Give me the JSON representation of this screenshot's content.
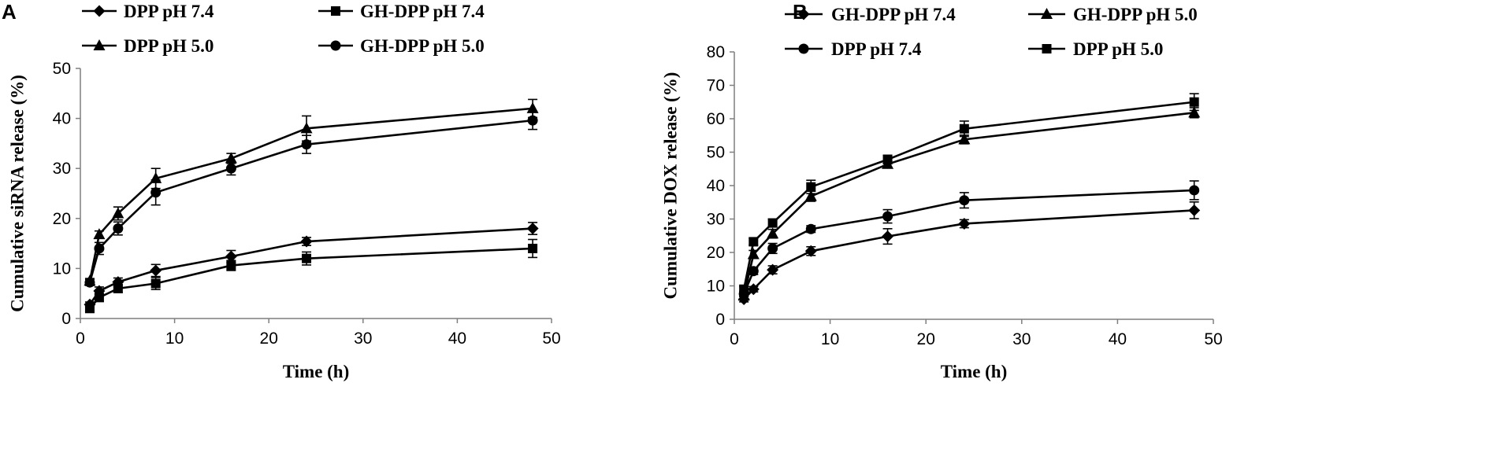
{
  "figure": {
    "panels": [
      {
        "label": "A"
      },
      {
        "label": "B"
      }
    ]
  },
  "chart_data": [
    {
      "type": "line",
      "panel": "A",
      "xlabel": "Time (h)",
      "ylabel": "Cumulative siRNA release (%)",
      "xlim": [
        0,
        50
      ],
      "ylim": [
        0,
        50
      ],
      "xticks": [
        0,
        10,
        20,
        30,
        40,
        50
      ],
      "yticks": [
        0,
        10,
        20,
        30,
        40,
        50
      ],
      "x": [
        1,
        2,
        4,
        8,
        16,
        24,
        48
      ],
      "legend_position": "top",
      "series": [
        {
          "name": "DPP pH 7.4",
          "marker": "diamond",
          "values": [
            2.8,
            5.5,
            7.3,
            9.6,
            12.4,
            15.4,
            18.0
          ],
          "errors": [
            0.5,
            0.8,
            0.8,
            1.2,
            1.2,
            0.8,
            1.2
          ]
        },
        {
          "name": "GH-DPP pH 7.4",
          "marker": "square",
          "values": [
            2.0,
            4.2,
            6.0,
            7.0,
            10.6,
            12.0,
            14.0
          ],
          "errors": [
            0.5,
            0.8,
            0.8,
            1.2,
            1.0,
            1.3,
            1.8
          ]
        },
        {
          "name": "DPP pH 5.0",
          "marker": "triangle",
          "values": [
            7.5,
            16.8,
            21.0,
            28.0,
            32.0,
            38.0,
            42.0
          ],
          "errors": [
            0.5,
            0.7,
            1.3,
            2.0,
            1.0,
            2.5,
            1.8
          ]
        },
        {
          "name": "GH-DPP pH 5.0",
          "marker": "circle",
          "values": [
            7.2,
            14.0,
            18.0,
            25.2,
            30.0,
            34.8,
            39.6
          ],
          "errors": [
            0.6,
            1.2,
            1.3,
            2.5,
            1.3,
            1.8,
            1.8
          ]
        }
      ]
    },
    {
      "type": "line",
      "panel": "B",
      "xlabel": "Time (h)",
      "ylabel": "Cumulative DOX release (%)",
      "xlim": [
        0,
        50
      ],
      "ylim": [
        0,
        80
      ],
      "xticks": [
        0,
        10,
        20,
        30,
        40,
        50
      ],
      "yticks": [
        0,
        10,
        20,
        30,
        40,
        50,
        60,
        70,
        80
      ],
      "x": [
        1,
        2,
        4,
        8,
        16,
        24,
        48
      ],
      "legend_position": "top",
      "series": [
        {
          "name": "GH-DPP pH 7.4",
          "marker": "diamond",
          "values": [
            6.0,
            9.0,
            14.8,
            20.4,
            24.8,
            28.6,
            32.6
          ],
          "errors": [
            0.8,
            0.8,
            1.2,
            1.3,
            2.3,
            1.2,
            2.5
          ]
        },
        {
          "name": "GH-DPP pH 5.0",
          "marker": "triangle",
          "values": [
            7.0,
            19.4,
            25.6,
            36.8,
            46.4,
            53.8,
            61.8
          ],
          "errors": [
            0.8,
            1.2,
            1.3,
            1.5,
            1.0,
            1.3,
            1.5
          ]
        },
        {
          "name": "DPP pH 7.4",
          "marker": "circle",
          "values": [
            7.6,
            14.4,
            21.2,
            27.0,
            30.8,
            35.6,
            38.6
          ],
          "errors": [
            0.8,
            1.0,
            1.5,
            1.0,
            2.0,
            2.3,
            2.8
          ]
        },
        {
          "name": "DPP pH 5.0",
          "marker": "square",
          "values": [
            9.0,
            23.2,
            28.8,
            39.6,
            47.8,
            57.0,
            65.0
          ],
          "errors": [
            0.8,
            1.0,
            1.2,
            2.0,
            1.3,
            2.3,
            2.5
          ]
        }
      ]
    }
  ]
}
